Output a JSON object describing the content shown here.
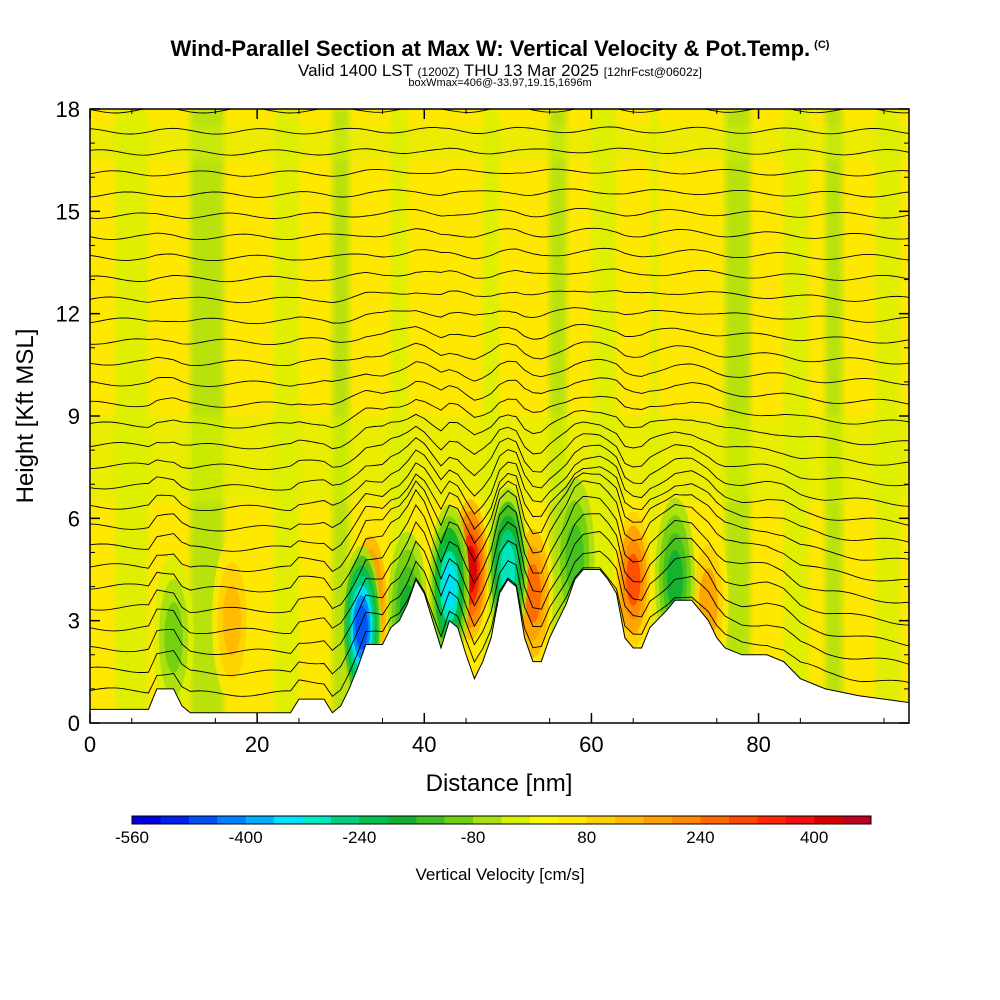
{
  "title": {
    "main": "Wind-Parallel Section at Max W: Vertical Velocity & Pot.Temp.",
    "copyright": "(C)",
    "valid_prefix": "Valid 1400 LST",
    "valid_utc": "(1200Z)",
    "valid_date": "THU 13 Mar 2025",
    "forecast": "[12hrFcst@0602z]",
    "box_info": "boxWmax=406@-33.97,19.15,1696m"
  },
  "chart_data": {
    "type": "heatmap",
    "xlabel": "Distance [nm]",
    "ylabel": "Height [Kft MSL]",
    "xlim": [
      0,
      98
    ],
    "ylim": [
      0,
      18
    ],
    "x_ticks": [
      0,
      20,
      40,
      60,
      80
    ],
    "x_tick_labels": [
      "0",
      "20",
      "40",
      "60",
      "80"
    ],
    "y_ticks": [
      0,
      3,
      6,
      9,
      12,
      15,
      18
    ],
    "y_tick_labels": [
      "0",
      "3",
      "6",
      "9",
      "12",
      "15",
      "18"
    ],
    "field": "Vertical Velocity",
    "contour_field": "Potential Temperature",
    "colorbar": {
      "title": "Vertical Velocity [cm/s]",
      "min": -560,
      "max": 480,
      "step": 40,
      "tick_values": [
        -560,
        -400,
        -240,
        -80,
        80,
        240,
        400
      ],
      "tick_labels": [
        "-560",
        "-400",
        "-240",
        "-80",
        "80",
        "240",
        "400"
      ],
      "colors": [
        "#0000e0",
        "#0020f0",
        "#0050f8",
        "#0080ff",
        "#00b0ff",
        "#00e0ff",
        "#00e8c0",
        "#00d080",
        "#00c050",
        "#10b030",
        "#40c020",
        "#70d010",
        "#a8e010",
        "#d8f000",
        "#f8f800",
        "#ffe800",
        "#ffd000",
        "#ffb800",
        "#ffa000",
        "#ff8800",
        "#ff6800",
        "#ff4800",
        "#ff2800",
        "#f01010",
        "#d80000",
        "#c00020"
      ]
    },
    "terrain_kft": [
      [
        0,
        0.4
      ],
      [
        7,
        0.4
      ],
      [
        8,
        1.0
      ],
      [
        10,
        1.0
      ],
      [
        11,
        0.5
      ],
      [
        12,
        0.3
      ],
      [
        24,
        0.3
      ],
      [
        25,
        0.7
      ],
      [
        28,
        0.7
      ],
      [
        29,
        0.3
      ],
      [
        30,
        0.5
      ],
      [
        31,
        1.0
      ],
      [
        32,
        1.6
      ],
      [
        33,
        2.3
      ],
      [
        35,
        2.3
      ],
      [
        36,
        2.8
      ],
      [
        37,
        3.0
      ],
      [
        38,
        3.5
      ],
      [
        39,
        4.2
      ],
      [
        40,
        3.8
      ],
      [
        41,
        3.0
      ],
      [
        42,
        2.2
      ],
      [
        43,
        3.0
      ],
      [
        44,
        2.8
      ],
      [
        45,
        2.0
      ],
      [
        46,
        1.3
      ],
      [
        47,
        1.8
      ],
      [
        48,
        2.5
      ],
      [
        49,
        3.8
      ],
      [
        50,
        4.2
      ],
      [
        51,
        4.0
      ],
      [
        52,
        2.5
      ],
      [
        53,
        1.8
      ],
      [
        54,
        1.8
      ],
      [
        55,
        2.5
      ],
      [
        56,
        3.0
      ],
      [
        57,
        3.5
      ],
      [
        58,
        4.2
      ],
      [
        59,
        4.5
      ],
      [
        61,
        4.5
      ],
      [
        62,
        4.2
      ],
      [
        63,
        3.8
      ],
      [
        64,
        2.5
      ],
      [
        65,
        2.2
      ],
      [
        66,
        2.2
      ],
      [
        67,
        2.8
      ],
      [
        69,
        3.3
      ],
      [
        70,
        3.6
      ],
      [
        72,
        3.6
      ],
      [
        74,
        3.0
      ],
      [
        75,
        2.5
      ],
      [
        76,
        2.2
      ],
      [
        78,
        2.0
      ],
      [
        81,
        2.0
      ],
      [
        83,
        1.8
      ],
      [
        85,
        1.3
      ],
      [
        88,
        1.0
      ],
      [
        92,
        0.8
      ],
      [
        95,
        0.7
      ],
      [
        98,
        0.6
      ]
    ],
    "updraft_cores": [
      {
        "x": 17,
        "y": 3.0,
        "w": 120
      },
      {
        "x": 33.5,
        "y": 3.5,
        "w": 300
      },
      {
        "x": 45.5,
        "y": 4.5,
        "w": 406
      },
      {
        "x": 53,
        "y": 3.8,
        "w": 240
      },
      {
        "x": 65,
        "y": 4.2,
        "w": 280
      },
      {
        "x": 74,
        "y": 3.5,
        "w": 160
      }
    ],
    "downdraft_cores": [
      {
        "x": 10,
        "y": 2.5,
        "w": -120
      },
      {
        "x": 32.5,
        "y": 2.8,
        "w": -480
      },
      {
        "x": 38,
        "y": 3.2,
        "w": -200
      },
      {
        "x": 43,
        "y": 4.0,
        "w": -360
      },
      {
        "x": 50,
        "y": 4.5,
        "w": -320
      },
      {
        "x": 58,
        "y": 4.8,
        "w": -140
      },
      {
        "x": 70,
        "y": 4.2,
        "w": -200
      }
    ],
    "theta_contour_count": 29
  }
}
